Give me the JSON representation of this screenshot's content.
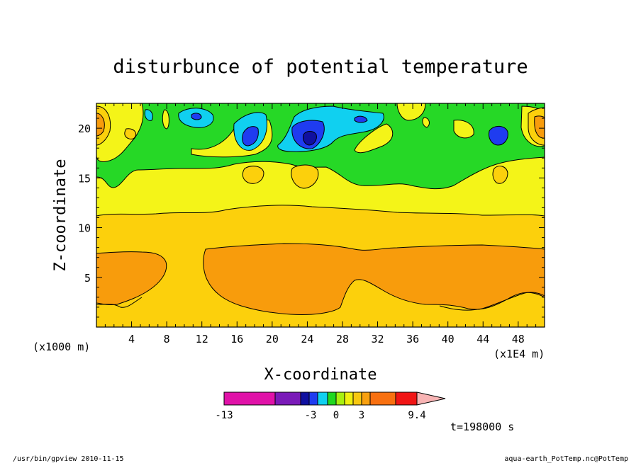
{
  "chart_data": {
    "type": "heatmap",
    "title": "disturbunce of potential temperature",
    "xlabel": "X-coordinate",
    "ylabel": "Z-coordinate",
    "x_unit_left": "(x1000 m)",
    "x_unit_right": "(x1E4 m)",
    "x_ticks": [
      4,
      8,
      12,
      16,
      20,
      24,
      28,
      32,
      36,
      40,
      44,
      48
    ],
    "y_ticks": [
      5,
      10,
      15,
      20
    ],
    "xlim": [
      0,
      51
    ],
    "ylim": [
      0,
      22.5
    ],
    "colorbar": {
      "labels": [
        "-13",
        "-3",
        "0",
        "3",
        "9.4"
      ],
      "label_values": [
        -13,
        -3,
        0,
        3,
        9.4
      ],
      "colors": [
        "#e012a8",
        "#7a1ab8",
        "#1010a0",
        "#1f3cf0",
        "#10d0f0",
        "#20d820",
        "#a8f010",
        "#f0f010",
        "#f8c810",
        "#f8a010",
        "#f87010",
        "#f01414",
        "#f87878",
        "#f8b4b4"
      ]
    },
    "bands": [
      {
        "name": "band-orange-low",
        "level": 1.5,
        "color": "#f89c0c"
      },
      {
        "name": "band-orange-mid",
        "level": 1.0,
        "color": "#fcd00c"
      },
      {
        "name": "band-yellow",
        "level": 0.5,
        "color": "#f4f418"
      },
      {
        "name": "band-green",
        "level": 0.0,
        "color": "#26d826"
      }
    ],
    "time_label": "t=198000 s"
  },
  "footer": {
    "left": "/usr/bin/gpview  2010-11-15",
    "right": "aqua-earth_PotTemp.nc@PotTemp"
  }
}
